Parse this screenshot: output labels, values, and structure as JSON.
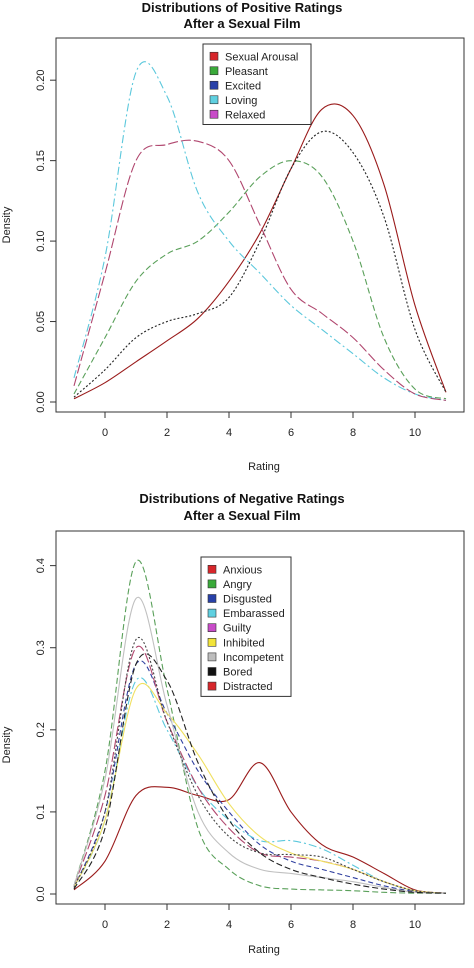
{
  "chart_data": [
    {
      "type": "line",
      "title_lines": [
        "Distributions of Positive Ratings",
        "After a Sexual Film"
      ],
      "xlabel": "Rating",
      "ylabel": "Density",
      "xlim": [
        -1,
        11
      ],
      "ylim": [
        0,
        0.22
      ],
      "x_ticks": [
        0,
        2,
        4,
        6,
        8,
        10
      ],
      "y_ticks": [
        0.0,
        0.05,
        0.1,
        0.15,
        0.2
      ],
      "y_tick_labels": [
        "0.00",
        "0.05",
        "0.10",
        "0.15",
        "0.20"
      ],
      "legend_position": "top-center",
      "x": [
        -1,
        0,
        1,
        2,
        3,
        4,
        5,
        6,
        7,
        8,
        9,
        10,
        11
      ],
      "series": [
        {
          "name": "Sexual Arousal",
          "color": "#9a1b1b",
          "dash": "",
          "line_color": "#9a1b1b",
          "swatch": "#d7262b",
          "values": [
            0.002,
            0.012,
            0.025,
            0.038,
            0.052,
            0.075,
            0.105,
            0.145,
            0.182,
            0.178,
            0.135,
            0.06,
            0.006
          ]
        },
        {
          "name": "Pleasant",
          "color": "#3c9a3c",
          "dash": "6,3",
          "line_color": "#5aa05a",
          "swatch": "#3aaa3a",
          "values": [
            0.005,
            0.04,
            0.075,
            0.092,
            0.1,
            0.118,
            0.14,
            0.15,
            0.14,
            0.1,
            0.04,
            0.008,
            0.002
          ]
        },
        {
          "name": "Excited",
          "color": "#1d2f7a",
          "dash": "2,2",
          "line_color": "#222222",
          "swatch": "#2840a8",
          "values": [
            0.003,
            0.02,
            0.04,
            0.05,
            0.055,
            0.065,
            0.1,
            0.145,
            0.168,
            0.155,
            0.115,
            0.045,
            0.006
          ]
        },
        {
          "name": "Loving",
          "color": "#4ec6dc",
          "dash": "8,3,2,3",
          "line_color": "#5cc8dc",
          "swatch": "#5fd0e0",
          "values": [
            0.015,
            0.09,
            0.205,
            0.19,
            0.13,
            0.1,
            0.08,
            0.06,
            0.045,
            0.03,
            0.015,
            0.005,
            0.001
          ]
        },
        {
          "name": "Relaxed",
          "color": "#c04fc0",
          "dash": "10,3",
          "line_color": "#b0466e",
          "swatch": "#c84cc8",
          "values": [
            0.01,
            0.08,
            0.15,
            0.16,
            0.162,
            0.15,
            0.11,
            0.07,
            0.055,
            0.04,
            0.02,
            0.005,
            0.001
          ]
        }
      ]
    },
    {
      "type": "line",
      "title_lines": [
        "Distributions of Negative Ratings",
        "After a Sexual Film"
      ],
      "xlabel": "Rating",
      "ylabel": "Density",
      "xlim": [
        -1,
        11
      ],
      "ylim": [
        0,
        0.43
      ],
      "x_ticks": [
        0,
        2,
        4,
        6,
        8,
        10
      ],
      "y_ticks": [
        0.0,
        0.1,
        0.2,
        0.3,
        0.4
      ],
      "y_tick_labels": [
        "0.0",
        "0.1",
        "0.2",
        "0.3",
        "0.4"
      ],
      "legend_position": "top-center",
      "x": [
        -1,
        0,
        1,
        2,
        3,
        4,
        5,
        6,
        7,
        8,
        9,
        10,
        11
      ],
      "series": [
        {
          "name": "Anxious",
          "color": "#d7262b",
          "dash": "",
          "line_color": "#9a1b1b",
          "swatch": "#d7262b",
          "values": [
            0.005,
            0.04,
            0.12,
            0.13,
            0.12,
            0.115,
            0.16,
            0.1,
            0.06,
            0.045,
            0.025,
            0.005,
            0.001
          ]
        },
        {
          "name": "Angry",
          "color": "#3aaa3a",
          "dash": "6,3",
          "line_color": "#5aa05a",
          "swatch": "#3aaa3a",
          "values": [
            0.01,
            0.15,
            0.405,
            0.25,
            0.08,
            0.03,
            0.01,
            0.006,
            0.005,
            0.004,
            0.002,
            0.001,
            0.001
          ]
        },
        {
          "name": "Disgusted",
          "color": "#2840a8",
          "dash": "5,3",
          "line_color": "#3040a0",
          "swatch": "#2840a8",
          "values": [
            0.008,
            0.1,
            0.28,
            0.22,
            0.15,
            0.1,
            0.06,
            0.04,
            0.03,
            0.02,
            0.01,
            0.003,
            0.001
          ]
        },
        {
          "name": "Embarassed",
          "color": "#5fd0e0",
          "dash": "8,3,2,3",
          "line_color": "#5cc8dc",
          "swatch": "#5fd0e0",
          "values": [
            0.008,
            0.09,
            0.26,
            0.2,
            0.13,
            0.09,
            0.065,
            0.065,
            0.055,
            0.035,
            0.015,
            0.004,
            0.001
          ]
        },
        {
          "name": "Guilty",
          "color": "#c84cc8",
          "dash": "10,3",
          "line_color": "#b0466e",
          "swatch": "#c84cc8",
          "values": [
            0.01,
            0.12,
            0.3,
            0.21,
            0.13,
            0.08,
            0.05,
            0.045,
            0.04,
            0.03,
            0.015,
            0.004,
            0.001
          ]
        },
        {
          "name": "Inhibited",
          "color": "#f2e43a",
          "dash": "",
          "line_color": "#f0e060",
          "swatch": "#f2e43a",
          "values": [
            0.008,
            0.09,
            0.25,
            0.22,
            0.17,
            0.11,
            0.07,
            0.05,
            0.04,
            0.03,
            0.015,
            0.004,
            0.001
          ]
        },
        {
          "name": "Incompetent",
          "color": "#bdbdbd",
          "dash": "",
          "line_color": "#c0c0c0",
          "swatch": "#bdbdbd",
          "values": [
            0.01,
            0.14,
            0.36,
            0.23,
            0.1,
            0.05,
            0.03,
            0.025,
            0.02,
            0.015,
            0.008,
            0.002,
            0.001
          ]
        },
        {
          "name": "Bored",
          "color": "#111111",
          "dash": "6,3",
          "line_color": "#222222",
          "swatch": "#111111",
          "values": [
            0.006,
            0.08,
            0.28,
            0.26,
            0.16,
            0.09,
            0.05,
            0.03,
            0.02,
            0.012,
            0.006,
            0.002,
            0.001
          ]
        },
        {
          "name": "Distracted",
          "color": "#d7262b",
          "dash": "2,2",
          "line_color": "#444444",
          "swatch": "#d7262b",
          "values": [
            0.008,
            0.1,
            0.31,
            0.21,
            0.12,
            0.07,
            0.05,
            0.048,
            0.045,
            0.03,
            0.015,
            0.004,
            0.001
          ]
        }
      ]
    }
  ]
}
